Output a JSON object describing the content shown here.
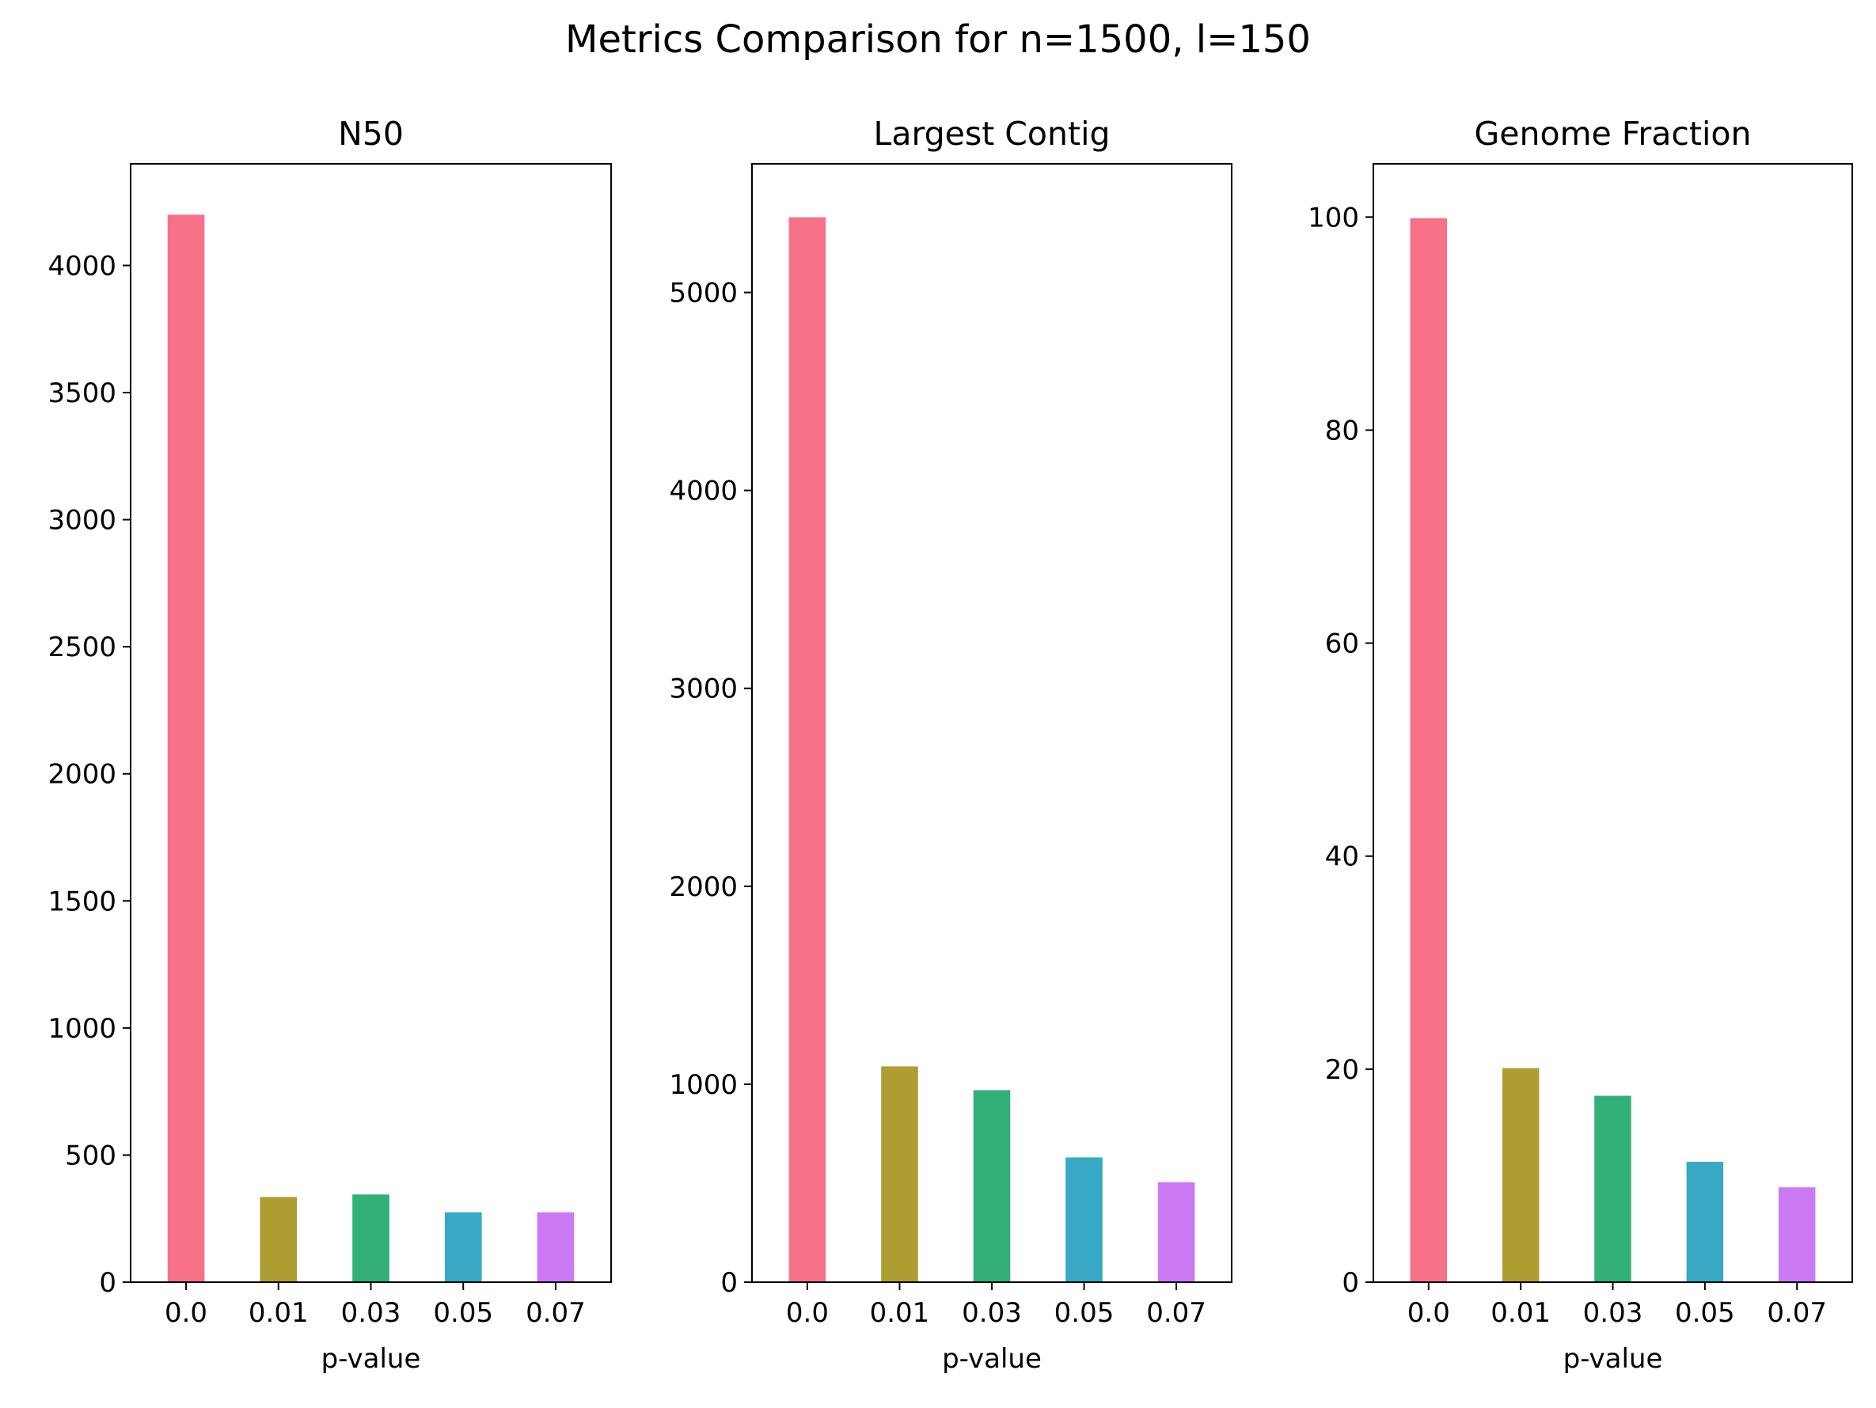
{
  "figure": {
    "suptitle": "Metrics Comparison for n=1500, l=150"
  },
  "chart_data": [
    {
      "type": "bar",
      "title": "N50",
      "xlabel": "p-value",
      "ylabel": "",
      "categories": [
        "0.0",
        "0.01",
        "0.03",
        "0.05",
        "0.07"
      ],
      "values": [
        4200,
        335,
        345,
        275,
        275
      ],
      "colors": [
        "#f77189",
        "#ae9d31",
        "#33b07a",
        "#38a9c5",
        "#cc7af4"
      ],
      "ylim": [
        0,
        4400
      ],
      "yticks": [
        0,
        500,
        1000,
        1500,
        2000,
        2500,
        3000,
        3500,
        4000
      ],
      "grid": false
    },
    {
      "type": "bar",
      "title": "Largest Contig",
      "xlabel": "p-value",
      "ylabel": "",
      "categories": [
        "0.0",
        "0.01",
        "0.03",
        "0.05",
        "0.07"
      ],
      "values": [
        5380,
        1090,
        970,
        630,
        505
      ],
      "colors": [
        "#f77189",
        "#ae9d31",
        "#33b07a",
        "#38a9c5",
        "#cc7af4"
      ],
      "ylim": [
        0,
        5650
      ],
      "yticks": [
        0,
        1000,
        2000,
        3000,
        4000,
        5000
      ],
      "grid": false
    },
    {
      "type": "bar",
      "title": "Genome Fraction",
      "xlabel": "p-value",
      "ylabel": "",
      "categories": [
        "0.0",
        "0.01",
        "0.03",
        "0.05",
        "0.07"
      ],
      "values": [
        99.9,
        20.1,
        17.5,
        11.3,
        8.9
      ],
      "colors": [
        "#f77189",
        "#ae9d31",
        "#33b07a",
        "#38a9c5",
        "#cc7af4"
      ],
      "ylim": [
        0,
        105
      ],
      "yticks": [
        0,
        20,
        40,
        60,
        80,
        100
      ],
      "grid": false
    }
  ]
}
